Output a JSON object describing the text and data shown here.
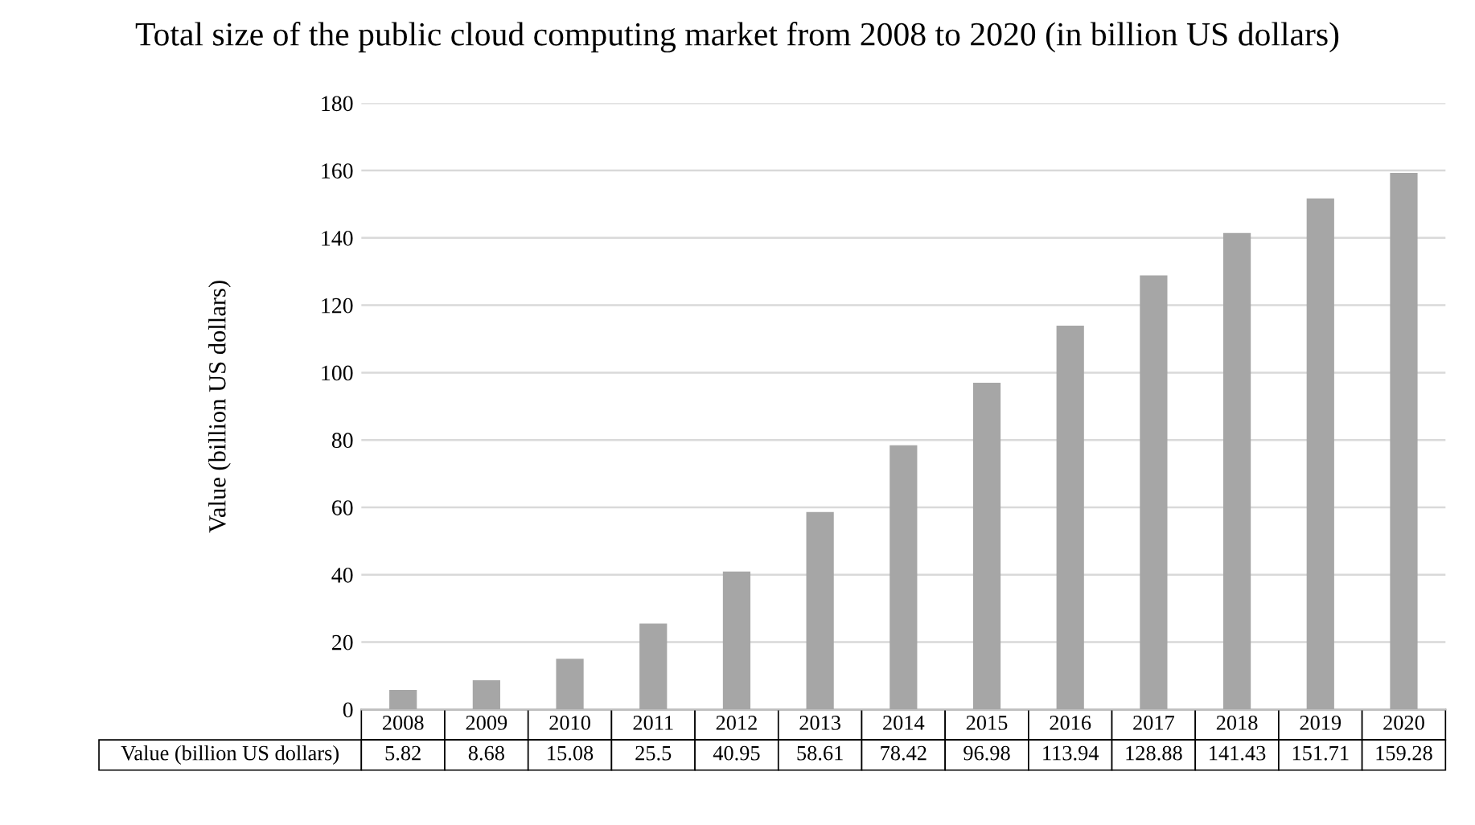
{
  "chart_data": {
    "type": "bar",
    "title": "Total size of the public cloud computing market from 2008 to 2020 (in billion US dollars)",
    "ylabel": "Value (billion US dollars)",
    "categories": [
      "2008",
      "2009",
      "2010",
      "2011",
      "2012",
      "2013",
      "2014",
      "2015",
      "2016",
      "2017",
      "2018",
      "2019",
      "2020"
    ],
    "series": [
      {
        "name": "Value (billion US dollars)",
        "color": "#a6a6a6",
        "values": [
          5.82,
          8.68,
          15.08,
          25.5,
          40.95,
          58.61,
          78.42,
          96.98,
          113.94,
          128.88,
          141.43,
          151.71,
          159.28
        ]
      }
    ],
    "ylim": [
      0,
      180
    ],
    "yticks": [
      0,
      20,
      40,
      60,
      80,
      100,
      120,
      140,
      160,
      180
    ],
    "grid": "y",
    "data_labels": true
  }
}
